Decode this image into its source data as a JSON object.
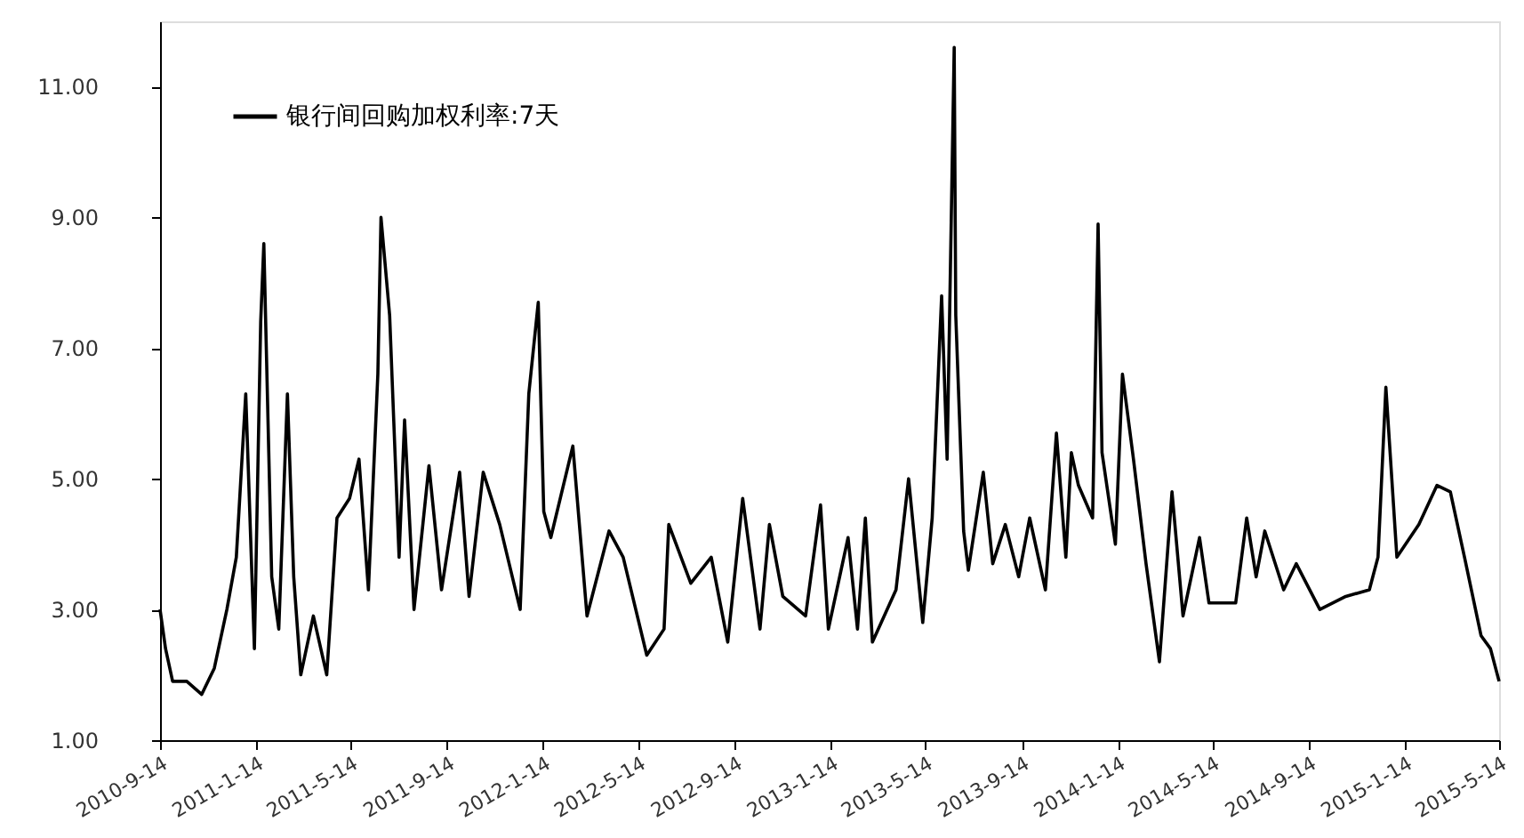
{
  "chart_data": {
    "type": "line",
    "legend": "top left",
    "grid": false,
    "xlim": [
      "2010-09-14",
      "2015-05-14"
    ],
    "xticks": [
      {
        "value": "2010-09-14",
        "label": "2010-9-14"
      },
      {
        "value": "2011-01-14",
        "label": "2011-1-14"
      },
      {
        "value": "2011-05-14",
        "label": "2011-5-14"
      },
      {
        "value": "2011-09-14",
        "label": "2011-9-14"
      },
      {
        "value": "2012-01-14",
        "label": "2012-1-14"
      },
      {
        "value": "2012-05-14",
        "label": "2012-5-14"
      },
      {
        "value": "2012-09-14",
        "label": "2012-9-14"
      },
      {
        "value": "2013-01-14",
        "label": "2013-1-14"
      },
      {
        "value": "2013-05-14",
        "label": "2013-5-14"
      },
      {
        "value": "2013-09-14",
        "label": "2013-9-14"
      },
      {
        "value": "2014-01-14",
        "label": "2014-1-14"
      },
      {
        "value": "2014-05-14",
        "label": "2014-5-14"
      },
      {
        "value": "2014-09-14",
        "label": "2014-9-14"
      },
      {
        "value": "2015-01-14",
        "label": "2015-1-14"
      },
      {
        "value": "2015-05-14",
        "label": "2015-5-14"
      }
    ],
    "ylim": [
      1,
      12
    ],
    "yticks": [
      {
        "value": 1,
        "label": "1.00"
      },
      {
        "value": 3,
        "label": "3.00"
      },
      {
        "value": 5,
        "label": "5.00"
      },
      {
        "value": 7,
        "label": "7.00"
      },
      {
        "value": 9,
        "label": "9.00"
      },
      {
        "value": 11,
        "label": "11.00"
      }
    ],
    "x": [
      "2010-09-14",
      "2010-09-21",
      "2010-09-30",
      "2010-10-18",
      "2010-11-06",
      "2010-11-22",
      "2010-12-08",
      "2010-12-20",
      "2011-01-01",
      "2011-01-12",
      "2011-01-20",
      "2011-01-24",
      "2011-02-03",
      "2011-02-12",
      "2011-02-23",
      "2011-03-03",
      "2011-03-12",
      "2011-03-28",
      "2011-04-14",
      "2011-04-27",
      "2011-05-13",
      "2011-05-25",
      "2011-06-06",
      "2011-06-18",
      "2011-06-22",
      "2011-07-03",
      "2011-07-15",
      "2011-07-22",
      "2011-08-03",
      "2011-08-22",
      "2011-09-07",
      "2011-09-30",
      "2011-10-12",
      "2011-10-30",
      "2011-11-20",
      "2011-12-16",
      "2011-12-27",
      "2012-01-08",
      "2012-01-15",
      "2012-01-24",
      "2012-02-21",
      "2012-03-10",
      "2012-04-07",
      "2012-04-25",
      "2012-05-25",
      "2012-06-16",
      "2012-06-22",
      "2012-07-20",
      "2012-08-15",
      "2012-09-05",
      "2012-09-24",
      "2012-10-16",
      "2012-10-28",
      "2012-11-14",
      "2012-12-13",
      "2013-01-01",
      "2013-01-11",
      "2013-02-05",
      "2013-02-17",
      "2013-02-27",
      "2013-03-08",
      "2013-04-07",
      "2013-04-23",
      "2013-05-11",
      "2013-05-23",
      "2013-06-04",
      "2013-06-11",
      "2013-06-20",
      "2013-06-22",
      "2013-07-02",
      "2013-07-08",
      "2013-07-27",
      "2013-08-08",
      "2013-08-24",
      "2013-09-10",
      "2013-09-24",
      "2013-10-14",
      "2013-10-28",
      "2013-11-09",
      "2013-11-16",
      "2013-11-25",
      "2013-12-13",
      "2013-12-20",
      "2013-12-25",
      "2014-01-11",
      "2014-01-20",
      "2014-02-03",
      "2014-02-19",
      "2014-03-08",
      "2014-03-24",
      "2014-04-07",
      "2014-04-28",
      "2014-05-10",
      "2014-06-13",
      "2014-06-27",
      "2014-07-09",
      "2014-07-20",
      "2014-08-13",
      "2014-08-29",
      "2014-09-28",
      "2014-10-31",
      "2014-11-30",
      "2014-12-11",
      "2014-12-21",
      "2014-12-28",
      "2015-01-04",
      "2015-02-01",
      "2015-02-24",
      "2015-03-13",
      "2015-03-31",
      "2015-04-21",
      "2015-05-03",
      "2015-05-14"
    ],
    "series": [
      {
        "name": "银行间回购加权利率:7天",
        "color": "#000000",
        "values": [
          3.0,
          2.4,
          1.9,
          1.9,
          1.7,
          2.1,
          3.0,
          3.8,
          6.3,
          2.4,
          7.4,
          8.6,
          3.5,
          2.7,
          6.3,
          3.5,
          2.0,
          2.9,
          2.0,
          4.4,
          4.7,
          5.3,
          3.3,
          6.6,
          9.0,
          7.5,
          3.8,
          5.9,
          3.0,
          5.2,
          3.3,
          5.1,
          3.2,
          5.1,
          4.3,
          3.0,
          6.3,
          7.7,
          4.5,
          4.1,
          5.5,
          2.9,
          4.2,
          3.8,
          2.3,
          2.7,
          4.3,
          3.4,
          3.8,
          2.5,
          4.7,
          2.7,
          4.3,
          3.2,
          2.9,
          4.6,
          2.7,
          4.1,
          2.7,
          4.4,
          2.5,
          3.3,
          5.0,
          2.8,
          4.4,
          7.8,
          5.3,
          11.6,
          7.5,
          4.2,
          3.6,
          5.1,
          3.7,
          4.3,
          3.5,
          4.4,
          3.3,
          5.7,
          3.8,
          5.4,
          4.9,
          4.4,
          8.9,
          5.4,
          4.0,
          6.6,
          5.3,
          3.7,
          2.2,
          4.8,
          2.9,
          4.1,
          3.1,
          3.1,
          4.4,
          3.5,
          4.2,
          3.3,
          3.7,
          3.0,
          3.2,
          3.3,
          3.8,
          6.4,
          5.1,
          3.8,
          4.3,
          4.9,
          4.8,
          3.8,
          2.6,
          2.4,
          1.9
        ]
      }
    ]
  }
}
